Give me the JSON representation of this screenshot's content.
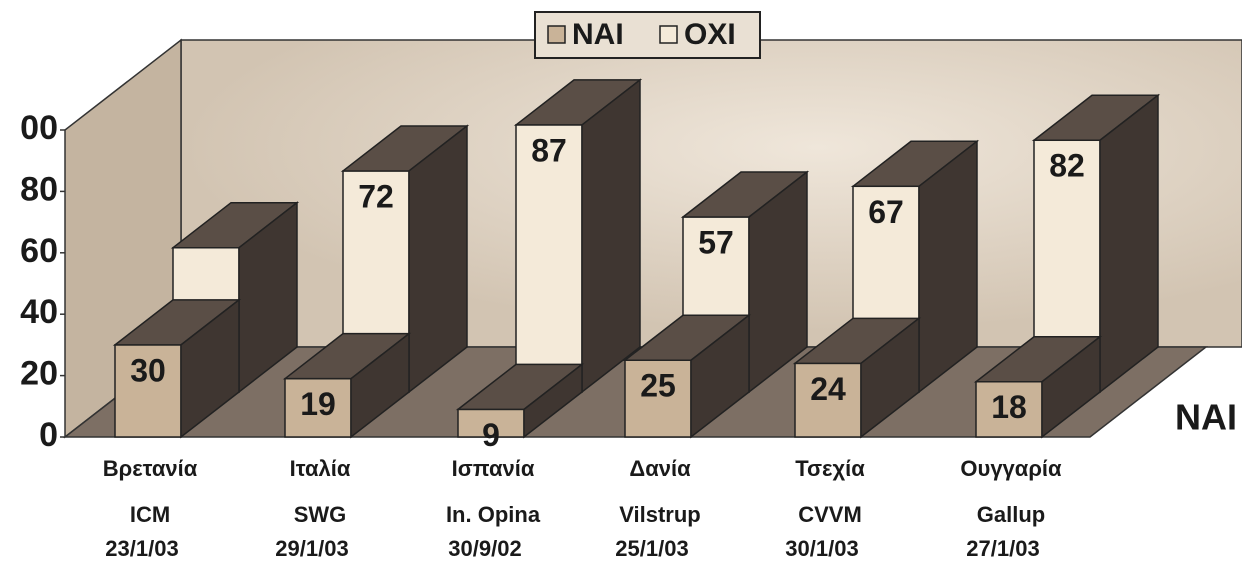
{
  "chart_data": {
    "type": "bar3d",
    "categories": [
      "Βρετανία",
      "Ιταλία",
      "Ισπανία",
      "Δανία",
      "Τσεχία",
      "Ουγγαρία"
    ],
    "pollsters": [
      "ICM",
      "SWG",
      "In. Opina",
      "Vilstrup",
      "CVVM",
      "Gallup"
    ],
    "dates": [
      "23/1/03",
      "29/1/03",
      "30/9/02",
      "25/1/03",
      "30/1/03",
      "27/1/03"
    ],
    "series": [
      {
        "name": "ΝΑΙ",
        "color": "#c9b398",
        "values": [
          30,
          19,
          9,
          25,
          24,
          18
        ]
      },
      {
        "name": "ΟΧΙ",
        "color": "#f4ead9",
        "values": [
          47,
          72,
          87,
          57,
          67,
          82
        ],
        "value_labels": [
          null,
          "72",
          "87",
          "57",
          "67",
          "82"
        ]
      }
    ],
    "row_label": "ΝΑΙ",
    "ylim": [
      0,
      100
    ],
    "yticks": [
      0,
      20,
      40,
      60,
      80,
      {
        "value": 100,
        "label": "00"
      }
    ],
    "legend": "top"
  }
}
